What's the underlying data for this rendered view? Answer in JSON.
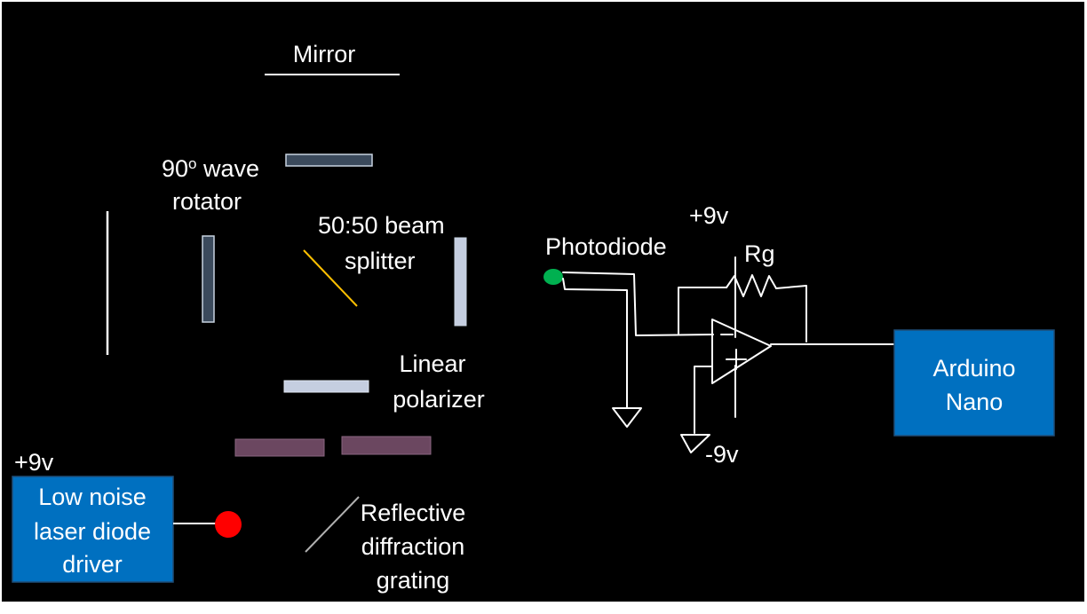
{
  "labels": {
    "mirror": "Mirror",
    "wave_rotator_1": "90",
    "wave_rotator_sup": "o",
    "wave_rotator_1b": " wave",
    "wave_rotator_2": "rotator",
    "beam_splitter_1": "50:50 beam",
    "beam_splitter_2": "splitter",
    "linear_polarizer_1": "Linear",
    "linear_polarizer_2": "polarizer",
    "grating_1": "Reflective",
    "grating_2": "diffraction",
    "grating_3": "grating",
    "photodiode": "Photodiode",
    "plus9v_amp": "+9v",
    "rg": "Rg",
    "minus9v": "-9v",
    "plus9v_driver": "+9v"
  },
  "laser_driver": {
    "line1": "Low noise",
    "line2": "laser diode",
    "line3": "driver"
  },
  "arduino": {
    "line1": "Arduino",
    "line2": "Nano"
  },
  "colors": {
    "background": "#000000",
    "box_fill": "#0070c0",
    "box_stroke": "#1f4e79",
    "mirror_fill": "#3b4a5c",
    "mirror_stroke": "#c8d3e0",
    "polarizer_fill": "#c5cee0",
    "grating_bar_fill": "#6b4760",
    "beam_splitter": "#ffc000",
    "laser": "#ff0000",
    "photodiode": "#00b050",
    "wire": "#ffffff"
  }
}
